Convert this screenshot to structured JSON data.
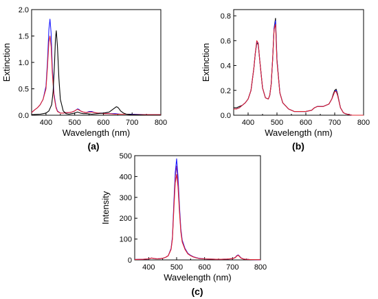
{
  "chart_data": [
    {
      "type": "line",
      "panel_label": "(a)",
      "xlabel": "Wavelength (nm)",
      "ylabel": "Extinction",
      "xlim": [
        350,
        800
      ],
      "ylim": [
        0,
        2.0
      ],
      "xticks": [
        400,
        500,
        600,
        700,
        800
      ],
      "yticks": [
        0.0,
        0.5,
        1.0,
        1.5,
        2.0
      ],
      "ytick_labels": [
        "0.0",
        "0.5",
        "1.0",
        "1.5",
        "2.0"
      ],
      "grid": false,
      "series": [
        {
          "color": "#1a1aff",
          "x": [
            350,
            360,
            370,
            380,
            390,
            400,
            405,
            410,
            414,
            418,
            422,
            428,
            435,
            440,
            450,
            460,
            470,
            480,
            490,
            500,
            505,
            510,
            515,
            520,
            530,
            540,
            550,
            560,
            570,
            580,
            590,
            600,
            620,
            640,
            660,
            680,
            700,
            750,
            800
          ],
          "y": [
            0.05,
            0.1,
            0.14,
            0.2,
            0.3,
            0.55,
            1.0,
            1.62,
            1.82,
            1.55,
            0.9,
            0.4,
            0.16,
            0.08,
            0.04,
            0.04,
            0.05,
            0.05,
            0.06,
            0.08,
            0.1,
            0.12,
            0.11,
            0.08,
            0.06,
            0.05,
            0.07,
            0.07,
            0.05,
            0.04,
            0.04,
            0.04,
            0.03,
            0.03,
            0.02,
            0.02,
            0.02,
            0.01,
            0.01
          ]
        },
        {
          "color": "#e0202a",
          "x": [
            350,
            360,
            370,
            380,
            390,
            400,
            405,
            410,
            414,
            418,
            422,
            428,
            435,
            440,
            450,
            460,
            470,
            480,
            490,
            500,
            505,
            510,
            515,
            520,
            530,
            540,
            550,
            560,
            570,
            580,
            590,
            600,
            620,
            640,
            660,
            680,
            700,
            750,
            800
          ],
          "y": [
            0.05,
            0.1,
            0.14,
            0.2,
            0.3,
            0.5,
            0.9,
            1.38,
            1.5,
            1.3,
            0.8,
            0.36,
            0.14,
            0.07,
            0.04,
            0.04,
            0.05,
            0.05,
            0.06,
            0.08,
            0.1,
            0.11,
            0.1,
            0.08,
            0.06,
            0.05,
            0.06,
            0.06,
            0.05,
            0.04,
            0.04,
            0.03,
            0.03,
            0.02,
            0.02,
            0.02,
            0.01,
            0.01,
            0.01
          ]
        },
        {
          "color": "#000000",
          "x": [
            350,
            380,
            400,
            410,
            420,
            425,
            430,
            433,
            436,
            440,
            445,
            450,
            460,
            470,
            480,
            490,
            500,
            510,
            520,
            530,
            540,
            560,
            580,
            600,
            620,
            630,
            640,
            645,
            650,
            655,
            660,
            670,
            680,
            700,
            750,
            800
          ],
          "y": [
            0.01,
            0.02,
            0.04,
            0.08,
            0.2,
            0.45,
            1.0,
            1.45,
            1.6,
            1.3,
            0.7,
            0.3,
            0.08,
            0.03,
            0.02,
            0.03,
            0.04,
            0.06,
            0.04,
            0.03,
            0.03,
            0.02,
            0.03,
            0.04,
            0.06,
            0.1,
            0.14,
            0.16,
            0.15,
            0.12,
            0.08,
            0.04,
            0.02,
            0.01,
            0.0,
            0.0
          ]
        }
      ]
    },
    {
      "type": "line",
      "panel_label": "(b)",
      "xlabel": "Wavelength (nm)",
      "ylabel": "Extinction",
      "xlim": [
        350,
        800
      ],
      "ylim": [
        0,
        0.85
      ],
      "xticks": [
        400,
        500,
        600,
        700,
        800
      ],
      "yticks": [
        0.0,
        0.2,
        0.4,
        0.6,
        0.8
      ],
      "ytick_labels": [
        "0.0",
        "0.2",
        "0.4",
        "0.6",
        "0.8"
      ],
      "grid": false,
      "series": [
        {
          "color": "#000000",
          "x": [
            350,
            360,
            370,
            380,
            390,
            400,
            410,
            420,
            425,
            430,
            435,
            440,
            450,
            460,
            470,
            475,
            480,
            485,
            490,
            495,
            500,
            510,
            520,
            540,
            560,
            580,
            600,
            620,
            630,
            640,
            650,
            660,
            670,
            680,
            690,
            695,
            700,
            705,
            710,
            720,
            730,
            740,
            760,
            780,
            800
          ],
          "y": [
            0.06,
            0.06,
            0.07,
            0.08,
            0.1,
            0.13,
            0.2,
            0.38,
            0.5,
            0.58,
            0.57,
            0.45,
            0.22,
            0.14,
            0.13,
            0.16,
            0.25,
            0.45,
            0.7,
            0.78,
            0.45,
            0.18,
            0.1,
            0.05,
            0.03,
            0.03,
            0.03,
            0.04,
            0.06,
            0.07,
            0.07,
            0.07,
            0.08,
            0.09,
            0.13,
            0.17,
            0.2,
            0.21,
            0.17,
            0.06,
            0.02,
            0.01,
            0.0,
            0.0,
            0.0
          ]
        },
        {
          "color": "#1a1aff",
          "x": [
            350,
            360,
            370,
            380,
            390,
            400,
            410,
            420,
            425,
            430,
            435,
            440,
            450,
            460,
            470,
            475,
            480,
            485,
            490,
            495,
            500,
            510,
            520,
            540,
            560,
            580,
            600,
            620,
            630,
            640,
            650,
            660,
            670,
            680,
            690,
            695,
            700,
            705,
            710,
            720,
            730,
            740,
            760,
            780,
            800
          ],
          "y": [
            0.05,
            0.05,
            0.06,
            0.08,
            0.1,
            0.13,
            0.2,
            0.38,
            0.5,
            0.59,
            0.58,
            0.45,
            0.22,
            0.14,
            0.13,
            0.16,
            0.25,
            0.45,
            0.7,
            0.76,
            0.44,
            0.18,
            0.1,
            0.05,
            0.03,
            0.03,
            0.03,
            0.04,
            0.06,
            0.07,
            0.07,
            0.07,
            0.08,
            0.09,
            0.13,
            0.16,
            0.19,
            0.2,
            0.16,
            0.06,
            0.02,
            0.01,
            0.0,
            0.0,
            0.0
          ]
        },
        {
          "color": "#e0202a",
          "x": [
            350,
            360,
            370,
            380,
            390,
            400,
            410,
            420,
            425,
            430,
            435,
            440,
            450,
            460,
            470,
            475,
            480,
            485,
            490,
            495,
            500,
            510,
            520,
            540,
            560,
            580,
            600,
            620,
            630,
            640,
            650,
            660,
            670,
            680,
            690,
            695,
            700,
            705,
            710,
            720,
            730,
            740,
            760,
            780,
            800
          ],
          "y": [
            0.05,
            0.05,
            0.06,
            0.08,
            0.1,
            0.13,
            0.2,
            0.38,
            0.5,
            0.6,
            0.58,
            0.45,
            0.22,
            0.14,
            0.13,
            0.16,
            0.25,
            0.45,
            0.69,
            0.73,
            0.43,
            0.18,
            0.1,
            0.05,
            0.03,
            0.03,
            0.03,
            0.04,
            0.06,
            0.07,
            0.07,
            0.07,
            0.08,
            0.09,
            0.13,
            0.16,
            0.19,
            0.19,
            0.16,
            0.06,
            0.02,
            0.01,
            0.0,
            0.0,
            0.0
          ]
        }
      ]
    },
    {
      "type": "line",
      "panel_label": "(c)",
      "xlabel": "Wavelength (nm)",
      "ylabel": "Intensity",
      "xlim": [
        350,
        800
      ],
      "ylim": [
        0,
        500
      ],
      "xticks": [
        400,
        500,
        600,
        700,
        800
      ],
      "yticks": [
        0,
        100,
        200,
        300,
        400,
        500
      ],
      "ytick_labels": [
        "0",
        "100",
        "200",
        "300",
        "400",
        "500"
      ],
      "grid": false,
      "series": [
        {
          "color": "#1a1aff",
          "x": [
            350,
            380,
            400,
            410,
            420,
            430,
            440,
            450,
            460,
            470,
            480,
            485,
            490,
            495,
            500,
            505,
            510,
            515,
            520,
            530,
            540,
            550,
            560,
            570,
            580,
            600,
            620,
            640,
            660,
            680,
            700,
            710,
            715,
            720,
            725,
            730,
            740,
            760,
            800
          ],
          "y": [
            2,
            3,
            5,
            9,
            7,
            5,
            6,
            8,
            12,
            20,
            55,
            110,
            270,
            420,
            485,
            400,
            260,
            150,
            95,
            55,
            32,
            22,
            15,
            11,
            8,
            5,
            4,
            3,
            3,
            4,
            6,
            12,
            20,
            24,
            18,
            10,
            4,
            2,
            1
          ]
        },
        {
          "color": "#7a1aa0",
          "x": [
            350,
            380,
            400,
            410,
            420,
            430,
            440,
            450,
            460,
            470,
            480,
            485,
            490,
            495,
            500,
            505,
            510,
            515,
            520,
            530,
            540,
            550,
            560,
            570,
            580,
            600,
            620,
            640,
            660,
            680,
            700,
            710,
            715,
            720,
            725,
            730,
            740,
            760,
            800
          ],
          "y": [
            2,
            3,
            5,
            9,
            7,
            5,
            6,
            8,
            12,
            20,
            52,
            105,
            255,
            400,
            450,
            375,
            245,
            142,
            90,
            52,
            30,
            21,
            14,
            10,
            7,
            5,
            4,
            3,
            3,
            4,
            6,
            12,
            19,
            23,
            17,
            10,
            4,
            2,
            1
          ]
        },
        {
          "color": "#e0202a",
          "x": [
            350,
            380,
            400,
            410,
            420,
            430,
            440,
            450,
            460,
            470,
            480,
            485,
            490,
            495,
            500,
            505,
            510,
            515,
            520,
            530,
            540,
            550,
            560,
            570,
            580,
            600,
            620,
            640,
            660,
            680,
            700,
            710,
            715,
            720,
            725,
            730,
            740,
            760,
            800
          ],
          "y": [
            2,
            3,
            5,
            9,
            7,
            5,
            6,
            8,
            12,
            20,
            50,
            100,
            240,
            370,
            410,
            350,
            230,
            135,
            86,
            50,
            29,
            20,
            14,
            10,
            7,
            5,
            4,
            3,
            3,
            4,
            6,
            11,
            18,
            22,
            16,
            9,
            4,
            2,
            1
          ]
        }
      ]
    }
  ]
}
